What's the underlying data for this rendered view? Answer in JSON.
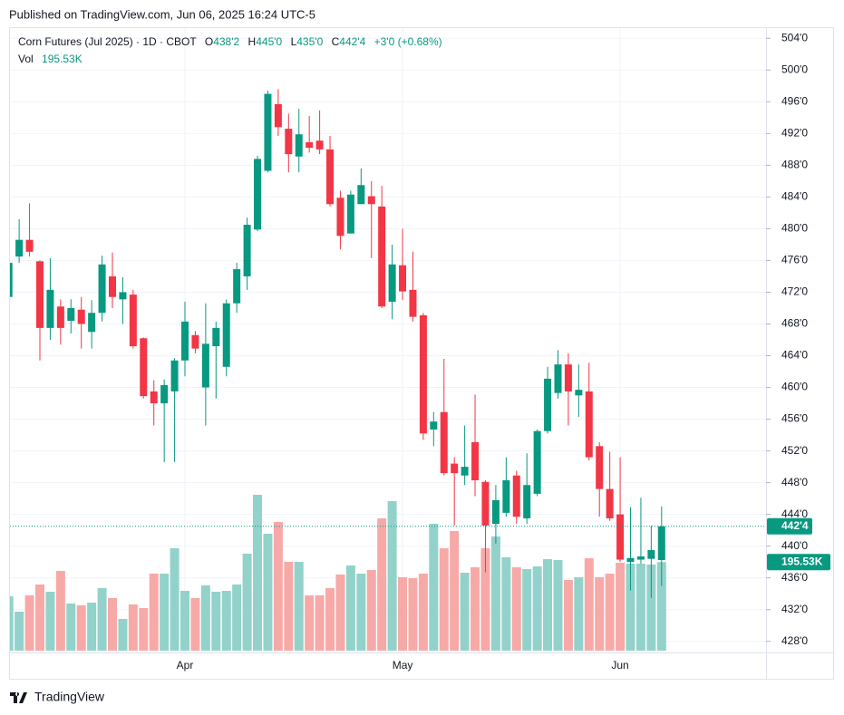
{
  "published": "Published on TradingView.com, Jun 06, 2025 16:24 UTC-5",
  "brand": "TradingView",
  "chart_data": {
    "type": "candlestick",
    "title": "Corn Futures (Jul 2025) · 1D · CBOT",
    "legend_keys": {
      "open": "O",
      "high": "H",
      "low": "L",
      "close": "C",
      "volume": "Vol"
    },
    "last_labels": {
      "open": "438'2",
      "high": "445'0",
      "low": "435'0",
      "close": "442'4"
    },
    "change_label": "+3'0 (+0.68%)",
    "volume_label": "195.53K",
    "up_color": "#089981",
    "down_color": "#f23645",
    "up_volume_color": "#92d2ca",
    "down_volume_color": "#f7a9a7",
    "grid": true,
    "categories": [
      null,
      null,
      null,
      null,
      null,
      null,
      null,
      null,
      null,
      null,
      null,
      null,
      null,
      null,
      null,
      null,
      null,
      "Apr",
      null,
      null,
      null,
      null,
      null,
      null,
      null,
      null,
      null,
      null,
      null,
      null,
      null,
      null,
      null,
      null,
      null,
      null,
      null,
      null,
      "May",
      null,
      null,
      null,
      null,
      null,
      null,
      null,
      null,
      null,
      null,
      null,
      null,
      null,
      null,
      null,
      null,
      null,
      null,
      null,
      null,
      "Jun",
      null,
      null,
      null,
      null
    ],
    "open": [
      471.4,
      476.5,
      478.6,
      475.9,
      467.5,
      470.2,
      468.4,
      469.8,
      467,
      469.4,
      474,
      471.1,
      471.7,
      466.2,
      459.5,
      458,
      459.5,
      463.4,
      466.6,
      460,
      465.2,
      462.6,
      470.6,
      474,
      479.9,
      487.3,
      495.7,
      492.6,
      489.1,
      490.9,
      491.1,
      490,
      483.9,
      479.4,
      483.1,
      484.1,
      482.8,
      470.8,
      475.4,
      472.3,
      469.1,
      454.7,
      456.9,
      450.4,
      448.9,
      453.1,
      448.1,
      442.8,
      444.2,
      448.9,
      443.5,
      446.6,
      454.5,
      459.3,
      462.9,
      459,
      459.5,
      452.6,
      447.2,
      444,
      438,
      438.3,
      438.4,
      438.25
    ],
    "high": [
      476,
      481.2,
      483.2,
      476,
      476.3,
      471.1,
      471.1,
      471.4,
      471,
      476.6,
      477,
      473.9,
      472.3,
      466.3,
      460.9,
      461,
      463.7,
      470.8,
      467.1,
      470.6,
      468.3,
      471.1,
      475.7,
      481.4,
      489.2,
      497.4,
      497.6,
      494.5,
      495.1,
      494.2,
      494.9,
      491.7,
      484.8,
      484.8,
      487.6,
      486,
      485.4,
      478,
      480,
      477.1,
      469.4,
      456.9,
      463.6,
      451.2,
      455.2,
      459.1,
      448.3,
      447.7,
      451.2,
      449.5,
      451.7,
      454.7,
      462.6,
      464.7,
      464.3,
      462.9,
      463.1,
      453.1,
      451.9,
      451.2,
      444.9,
      446.1,
      442.6,
      445
    ],
    "low": [
      471,
      475.7,
      476.5,
      463.4,
      466,
      465.4,
      466.8,
      464.9,
      464.9,
      468.3,
      470,
      468,
      464.9,
      458.6,
      455.2,
      450.6,
      450.6,
      461.4,
      464.3,
      455.2,
      458.6,
      461.4,
      469.4,
      472.3,
      479.7,
      487.1,
      491.7,
      487.1,
      487.1,
      489.6,
      489.4,
      482.8,
      477.4,
      479.4,
      483.1,
      476.3,
      470,
      468.6,
      471,
      468.3,
      453.4,
      452.6,
      448.9,
      442.6,
      447.7,
      446.3,
      436.7,
      440.3,
      443.7,
      442.8,
      442.8,
      446.3,
      454.2,
      458.6,
      455.2,
      456.3,
      450.8,
      443.7,
      443.2,
      438,
      434.4,
      437.8,
      433.5,
      435
    ],
    "close": [
      475.7,
      478.6,
      477.1,
      467.5,
      472.3,
      467.5,
      470,
      468,
      469.4,
      475.5,
      471.4,
      472,
      465.2,
      458.9,
      458,
      460.3,
      463.4,
      468.3,
      464.9,
      465.5,
      467.5,
      470.6,
      474.9,
      480.5,
      488.8,
      497,
      492.8,
      489.4,
      491.9,
      490.2,
      490,
      483.1,
      479.1,
      484.3,
      485.5,
      483.1,
      470.2,
      475.5,
      472.1,
      468.9,
      454.2,
      455.7,
      449.2,
      449.2,
      450,
      448.3,
      442.6,
      445.8,
      448.3,
      443.7,
      447.7,
      454.5,
      461.1,
      462.9,
      459.5,
      459.7,
      451.2,
      447.2,
      443.5,
      438.3,
      438.5,
      438.7,
      439.5,
      442.5
    ],
    "volume": [
      120000,
      86000,
      122000,
      146000,
      130000,
      176000,
      104000,
      100000,
      106000,
      138000,
      116000,
      70000,
      102000,
      94000,
      170000,
      170000,
      226000,
      132000,
      116000,
      144000,
      130000,
      132000,
      146000,
      214000,
      344000,
      258000,
      284000,
      196000,
      196000,
      122000,
      122000,
      138000,
      168000,
      188000,
      170000,
      178000,
      292000,
      330000,
      162000,
      160000,
      170000,
      280000,
      226000,
      264000,
      172000,
      184000,
      226000,
      252000,
      206000,
      184000,
      180000,
      186000,
      202000,
      200000,
      156000,
      162000,
      204000,
      162000,
      170000,
      194000,
      192000,
      192000,
      190000,
      195530
    ],
    "ylim": [
      426.6,
      505.4
    ],
    "yticks": [
      {
        "value": 428,
        "label": "428'0"
      },
      {
        "value": 432,
        "label": "432'0"
      },
      {
        "value": 436,
        "label": "436'0"
      },
      {
        "value": 440,
        "label": "440'0"
      },
      {
        "value": 444,
        "label": "444'0"
      },
      {
        "value": 448,
        "label": "448'0"
      },
      {
        "value": 452,
        "label": "452'0"
      },
      {
        "value": 456,
        "label": "456'0"
      },
      {
        "value": 460,
        "label": "460'0"
      },
      {
        "value": 464,
        "label": "464'0"
      },
      {
        "value": 468,
        "label": "468'0"
      },
      {
        "value": 472,
        "label": "472'0"
      },
      {
        "value": 476,
        "label": "476'0"
      },
      {
        "value": 480,
        "label": "480'0"
      },
      {
        "value": 484,
        "label": "484'0"
      },
      {
        "value": 488,
        "label": "488'0"
      },
      {
        "value": 492,
        "label": "492'0"
      },
      {
        "value": 496,
        "label": "496'0"
      },
      {
        "value": 500,
        "label": "500'0"
      },
      {
        "value": 504,
        "label": "504'0"
      }
    ]
  }
}
